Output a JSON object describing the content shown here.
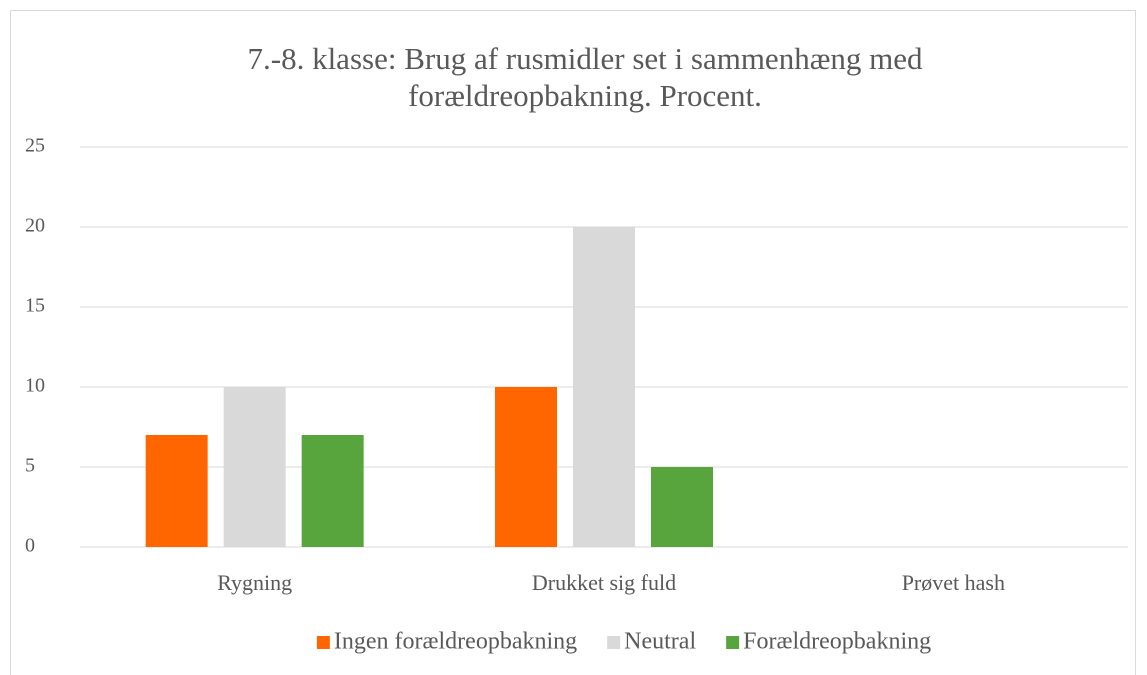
{
  "chart_data": {
    "type": "bar",
    "title": "7.-8. klasse: Brug af rusmidler set i sammenhæng med forældreopbakning. Procent.",
    "categories": [
      "Rygning",
      "Drukket sig fuld",
      "Prøvet hash"
    ],
    "series": [
      {
        "name": "Ingen forældreopbakning",
        "color": "#ff6600",
        "values": [
          7,
          10,
          0
        ]
      },
      {
        "name": "Neutral",
        "color": "#d9d9d9",
        "values": [
          10,
          20,
          0
        ]
      },
      {
        "name": "Forældreopbakning",
        "color": "#58a53e",
        "values": [
          7,
          5,
          0
        ]
      }
    ],
    "ylim": [
      0,
      25
    ],
    "yticks": [
      0,
      5,
      10,
      15,
      20,
      25
    ],
    "grid": true,
    "legend": "bottom"
  }
}
